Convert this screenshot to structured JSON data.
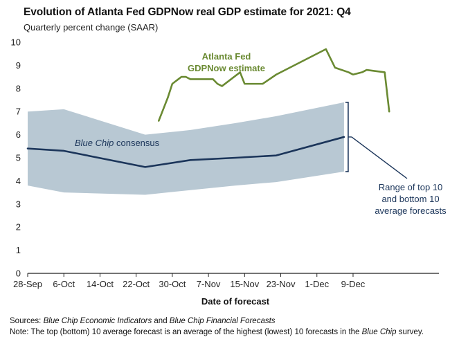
{
  "chart_data": {
    "type": "line",
    "title": "Evolution of Atlanta Fed GDPNow real GDP estimate for 2021: Q4",
    "subtitle": "Quarterly percent change (SAAR)",
    "xlabel": "Date of forecast",
    "ylabel": "",
    "ylim": [
      0,
      10
    ],
    "yticks": [
      "0",
      "1",
      "2",
      "3",
      "4",
      "5",
      "6",
      "7",
      "8",
      "9",
      "10"
    ],
    "xlim": [
      0,
      91
    ],
    "xticks": [
      {
        "label": "28-Sep",
        "day": 0
      },
      {
        "label": "6-Oct",
        "day": 8
      },
      {
        "label": "14-Oct",
        "day": 16
      },
      {
        "label": "22-Oct",
        "day": 24
      },
      {
        "label": "30-Oct",
        "day": 32
      },
      {
        "label": "7-Nov",
        "day": 40
      },
      {
        "label": "15-Nov",
        "day": 48
      },
      {
        "label": "23-Nov",
        "day": 56
      },
      {
        "label": "1-Dec",
        "day": 64
      },
      {
        "label": "9-Dec",
        "day": 72
      }
    ],
    "grid": false,
    "colors": {
      "gdpnow": "#6a8a32",
      "consensus": "#1b355a",
      "range": "#b8c8d3",
      "axis": "#222222"
    },
    "series": [
      {
        "name": "Atlanta Fed GDPNow estimate",
        "x": [
          29,
          31,
          32,
          34,
          35,
          36,
          37,
          41,
          42,
          43,
          47,
          48,
          52,
          55,
          66,
          68,
          71,
          72,
          74,
          75,
          79,
          80
        ],
        "y": [
          6.6,
          7.6,
          8.2,
          8.5,
          8.5,
          8.4,
          8.4,
          8.4,
          8.2,
          8.1,
          8.7,
          8.2,
          8.2,
          8.6,
          9.7,
          8.9,
          8.7,
          8.6,
          8.7,
          8.8,
          8.7,
          7.0
        ]
      },
      {
        "name": "Blue Chip consensus",
        "x": [
          0,
          8,
          26,
          36,
          46,
          55,
          70
        ],
        "y": [
          5.4,
          5.3,
          4.6,
          4.9,
          5.0,
          5.1,
          5.9
        ]
      }
    ],
    "band": {
      "name": "Range of top 10 and bottom 10 average forecasts",
      "x": [
        0,
        8,
        26,
        36,
        46,
        55,
        70
      ],
      "upper": [
        7.0,
        7.1,
        6.0,
        6.2,
        6.5,
        6.8,
        7.4
      ],
      "lower": [
        3.8,
        3.5,
        3.4,
        3.6,
        3.8,
        3.95,
        4.4
      ]
    },
    "annotations": {
      "gdpnow_line1": "Atlanta Fed",
      "gdpnow_line2": "GDPNow estimate",
      "consensus_italic": "Blue Chip",
      "consensus_rest": " consensus",
      "range_line1": "Range of top 10",
      "range_line2": "and bottom 10",
      "range_line3": "average forecasts"
    }
  },
  "footnotes": {
    "sources_label": "Sources:",
    "sources_italic1": "Blue Chip Economic Indicators",
    "sources_and": " and ",
    "sources_italic2": "Blue Chip Financial Forecasts",
    "note_label": "Note:",
    "note_text1": " The top (bottom) 10 average forecast is an average of the highest (lowest) 10 forecasts in the ",
    "note_italic": "Blue Chip",
    "note_text2": " survey."
  }
}
